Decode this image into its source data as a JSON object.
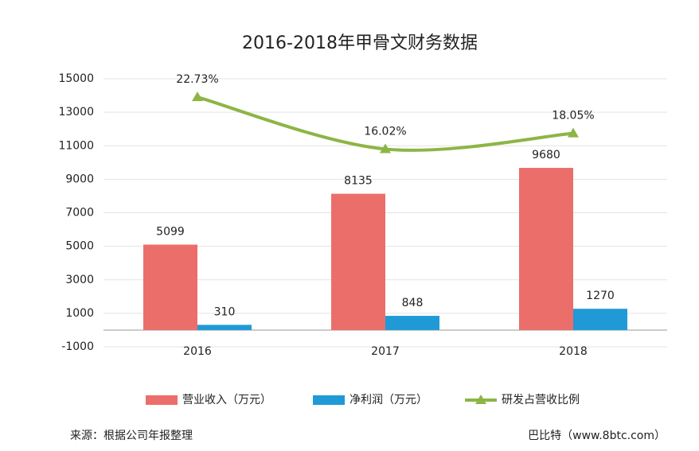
{
  "chart_data": {
    "type": "bar",
    "title": "2016-2018年甲骨文财务数据",
    "categories": [
      "2016",
      "2017",
      "2018"
    ],
    "series": [
      {
        "name": "营业收入（万元）",
        "type": "bar",
        "color": "#ec6e6a",
        "values": [
          5099,
          8135,
          9680
        ]
      },
      {
        "name": "净利润（万元）",
        "type": "bar",
        "color": "#1f9ad6",
        "values": [
          310,
          848,
          1270
        ]
      },
      {
        "name": "研发占营收比例",
        "type": "line",
        "axis": "y2",
        "color": "#8db545",
        "values": [
          22.73,
          16.02,
          18.05
        ],
        "value_labels": [
          "22.73%",
          "16.02%",
          "18.05%"
        ]
      }
    ],
    "ylim": [
      -1000,
      15000
    ],
    "yticks": [
      -1000,
      1000,
      3000,
      5000,
      7000,
      9000,
      11000,
      13000,
      15000
    ],
    "y2lim": [
      -9.5,
      25.1
    ],
    "grid": true,
    "legend": "bottom",
    "source": "来源：根据公司年报整理",
    "credit": "巴比特（www.8btc.com）"
  }
}
